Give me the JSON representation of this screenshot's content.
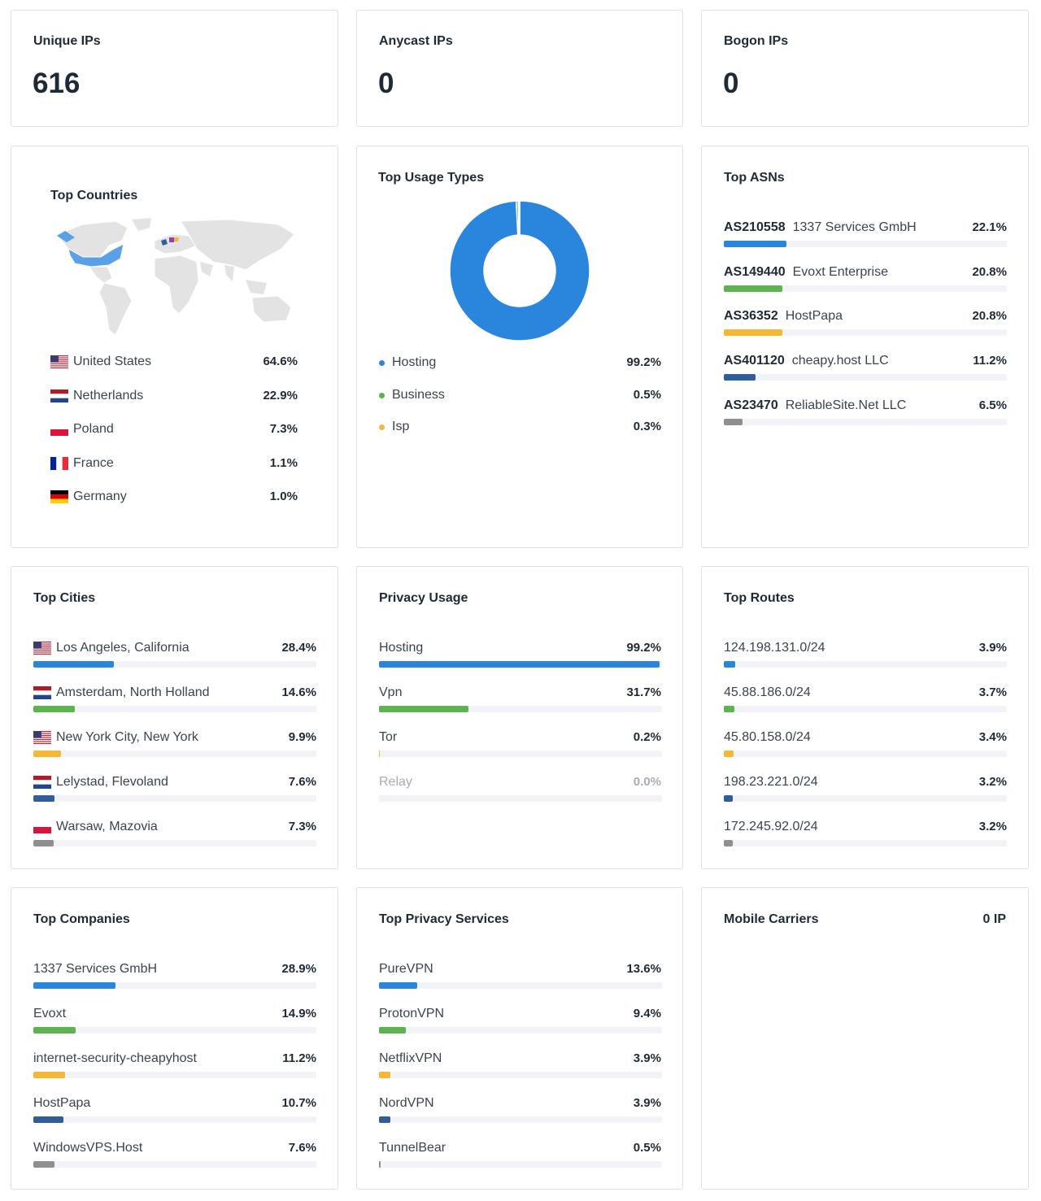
{
  "palette": [
    "#2a85dc",
    "#5cb34f",
    "#f6b735",
    "#2f5e9a",
    "#8f8f8f"
  ],
  "stats": [
    {
      "title": "Unique IPs",
      "value": 616
    },
    {
      "title": "Anycast IPs",
      "value": 0
    },
    {
      "title": "Bogon IPs",
      "value": 0
    }
  ],
  "top_countries": {
    "title": "Top Countries",
    "items": [
      {
        "name": "United States",
        "value": 64.6,
        "label": "64.6%"
      },
      {
        "name": "Netherlands",
        "value": 22.9,
        "label": "22.9%"
      },
      {
        "name": "Poland",
        "value": 7.3,
        "label": "7.3%"
      },
      {
        "name": "France",
        "value": 1.1,
        "label": "1.1%"
      },
      {
        "name": "Germany",
        "value": 1.0,
        "label": "1.0%"
      }
    ]
  },
  "top_usage_types": {
    "title": "Top Usage Types",
    "items": [
      {
        "name": "Hosting",
        "value": 99.2,
        "label": "99.2%"
      },
      {
        "name": "Business",
        "value": 0.5,
        "label": "0.5%"
      },
      {
        "name": "Isp",
        "value": 0.3,
        "label": "0.3%"
      }
    ]
  },
  "top_asns": {
    "title": "Top ASNs",
    "items": [
      {
        "asn": "AS210558",
        "name": "1337 Services GmbH",
        "value": 22.1,
        "label": "22.1%"
      },
      {
        "asn": "AS149440",
        "name": "Evoxt Enterprise",
        "value": 20.8,
        "label": "20.8%"
      },
      {
        "asn": "AS36352",
        "name": "HostPapa",
        "value": 20.8,
        "label": "20.8%"
      },
      {
        "asn": "AS401120",
        "name": "cheapy.host LLC",
        "value": 11.2,
        "label": "11.2%"
      },
      {
        "asn": "AS23470",
        "name": "ReliableSite.Net LLC",
        "value": 6.5,
        "label": "6.5%"
      }
    ]
  },
  "top_cities": {
    "title": "Top Cities",
    "items": [
      {
        "name": "Los Angeles, California",
        "value": 28.4,
        "label": "28.4%"
      },
      {
        "name": "Amsterdam, North Holland",
        "value": 14.6,
        "label": "14.6%"
      },
      {
        "name": "New York City, New York",
        "value": 9.9,
        "label": "9.9%"
      },
      {
        "name": "Lelystad, Flevoland",
        "value": 7.6,
        "label": "7.6%"
      },
      {
        "name": "Warsaw, Mazovia",
        "value": 7.3,
        "label": "7.3%"
      }
    ]
  },
  "privacy_usage": {
    "title": "Privacy Usage",
    "items": [
      {
        "name": "Hosting",
        "value": 99.2,
        "label": "99.2%"
      },
      {
        "name": "Vpn",
        "value": 31.7,
        "label": "31.7%"
      },
      {
        "name": "Tor",
        "value": 0.2,
        "label": "0.2%"
      },
      {
        "name": "Relay",
        "value": 0.0,
        "label": "0.0%"
      }
    ]
  },
  "top_routes": {
    "title": "Top Routes",
    "items": [
      {
        "name": "124.198.131.0/24",
        "value": 3.9,
        "label": "3.9%"
      },
      {
        "name": "45.88.186.0/24",
        "value": 3.7,
        "label": "3.7%"
      },
      {
        "name": "45.80.158.0/24",
        "value": 3.4,
        "label": "3.4%"
      },
      {
        "name": "198.23.221.0/24",
        "value": 3.2,
        "label": "3.2%"
      },
      {
        "name": "172.245.92.0/24",
        "value": 3.2,
        "label": "3.2%"
      }
    ]
  },
  "top_companies": {
    "title": "Top Companies",
    "items": [
      {
        "name": "1337 Services GmbH",
        "value": 28.9,
        "label": "28.9%"
      },
      {
        "name": "Evoxt",
        "value": 14.9,
        "label": "14.9%"
      },
      {
        "name": "internet-security-cheapyhost",
        "value": 11.2,
        "label": "11.2%"
      },
      {
        "name": "HostPapa",
        "value": 10.7,
        "label": "10.7%"
      },
      {
        "name": "WindowsVPS.Host",
        "value": 7.6,
        "label": "7.6%"
      }
    ]
  },
  "top_privacy_services": {
    "title": "Top Privacy Services",
    "items": [
      {
        "name": "PureVPN",
        "value": 13.6,
        "label": "13.6%"
      },
      {
        "name": "ProtonVPN",
        "value": 9.4,
        "label": "9.4%"
      },
      {
        "name": "NetflixVPN",
        "value": 3.9,
        "label": "3.9%"
      },
      {
        "name": "NordVPN",
        "value": 3.9,
        "label": "3.9%"
      },
      {
        "name": "TunnelBear",
        "value": 0.5,
        "label": "0.5%"
      }
    ]
  },
  "mobile_carriers": {
    "title": "Mobile Carriers",
    "count": "0 IP"
  }
}
